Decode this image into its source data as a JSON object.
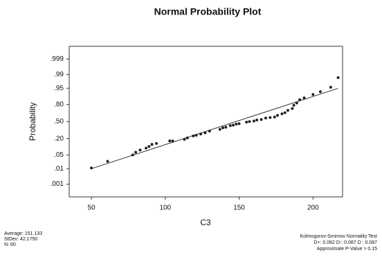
{
  "chart_data": {
    "type": "probability-plot",
    "title": "Normal Probability Plot",
    "x_label": "C3",
    "y_label": "Probability",
    "yscale": "probit",
    "color": "#222",
    "xlim": [
      35,
      220
    ],
    "xticks": [
      50,
      100,
      150,
      200
    ],
    "ylim": [
      0.0001,
      0.9999
    ],
    "yticks": [
      {
        "value": 0.001,
        "label": ".001"
      },
      {
        "value": 0.01,
        "label": ".01"
      },
      {
        "value": 0.05,
        "label": ".05"
      },
      {
        "value": 0.2,
        "label": ".20"
      },
      {
        "value": 0.5,
        "label": ".50"
      },
      {
        "value": 0.8,
        "label": ".80"
      },
      {
        "value": 0.95,
        "label": ".95"
      },
      {
        "value": 0.99,
        "label": ".99"
      },
      {
        "value": 0.999,
        "label": ".999"
      }
    ],
    "x": [
      50,
      61,
      78,
      80,
      83,
      87,
      89,
      91,
      94,
      103,
      105,
      113,
      115,
      119,
      121,
      124,
      127,
      130,
      137,
      139,
      141,
      144,
      146,
      148,
      150,
      155,
      157,
      160,
      162,
      165,
      168,
      171,
      174,
      176,
      179,
      181,
      183,
      186,
      187,
      189,
      191,
      194,
      200,
      205,
      212,
      217
    ],
    "values": [
      0.011,
      0.025,
      0.05,
      0.065,
      0.08,
      0.095,
      0.11,
      0.13,
      0.14,
      0.17,
      0.17,
      0.19,
      0.21,
      0.24,
      0.25,
      0.27,
      0.29,
      0.32,
      0.35,
      0.38,
      0.39,
      0.42,
      0.43,
      0.45,
      0.46,
      0.49,
      0.5,
      0.51,
      0.53,
      0.54,
      0.57,
      0.58,
      0.59,
      0.62,
      0.65,
      0.67,
      0.71,
      0.74,
      0.79,
      0.82,
      0.86,
      0.88,
      0.91,
      0.93,
      0.955,
      0.985
    ],
    "fit_line": {
      "x": [
        50,
        217
      ],
      "y": [
        0.01,
        0.95
      ]
    },
    "stats": [
      "Average: 151.133",
      "StDev: 42.1750",
      "N: 60"
    ],
    "test": [
      "Kolmogorov-Smirnov Normality Test",
      "D+: 0.062  D-: 0.087  D : 0.087",
      "Approximate P-Value > 0.15"
    ]
  }
}
